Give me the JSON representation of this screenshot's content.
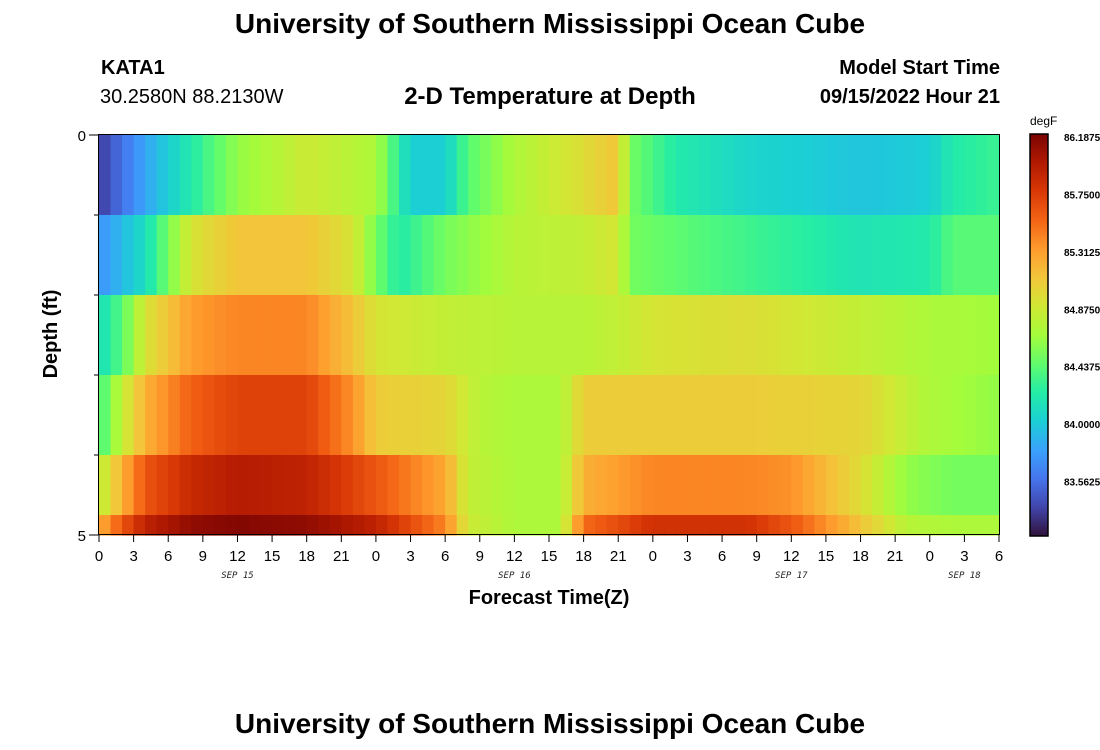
{
  "header": {
    "title": "University of Southern Mississippi Ocean Cube",
    "station": "KATA1",
    "coords": "30.2580N  88.2130W",
    "subtitle": "2-D Temperature at Depth",
    "model_label": "Model Start Time",
    "model_time": "09/15/2022 Hour 21"
  },
  "footer": {
    "title": "University of Southern Mississippi Ocean Cube"
  },
  "chart_data": {
    "type": "heatmap",
    "title": "2-D Temperature at Depth",
    "xlabel": "Forecast Time(Z)",
    "ylabel": "Depth (ft)",
    "x_tick_labels": [
      "0",
      "3",
      "6",
      "9",
      "12",
      "15",
      "18",
      "21",
      "0",
      "3",
      "6",
      "9",
      "12",
      "15",
      "18",
      "21",
      "0",
      "3",
      "6",
      "9",
      "12",
      "15",
      "18",
      "21",
      "0",
      "3",
      "6"
    ],
    "date_labels": [
      {
        "label": "SEP 15",
        "hour": 12
      },
      {
        "label": "SEP 16",
        "hour": 36
      },
      {
        "label": "SEP 17",
        "hour": 60
      },
      {
        "label": "SEP 18",
        "hour": 75
      }
    ],
    "x_range_hours": [
      0,
      78
    ],
    "y_tick_labels": [
      "0",
      "5"
    ],
    "y_range": [
      0,
      5
    ],
    "colorbar": {
      "unit": "degF",
      "tick_labels": [
        "86.1875",
        "85.7500",
        "85.3125",
        "84.8750",
        "84.4375",
        "84.0000",
        "83.5625"
      ],
      "min": 83.125,
      "max": 86.1875,
      "colors": [
        "#30123b",
        "#4145ab",
        "#4675ed",
        "#39a2fc",
        "#1bcfd4",
        "#24eca6",
        "#61fc6c",
        "#a4fc3b",
        "#d1e834",
        "#f3c63a",
        "#fe9b2d",
        "#f36315",
        "#d93806",
        "#b11901",
        "#7a0402"
      ]
    },
    "depth_rows": [
      {
        "depth": 0.5,
        "keys": [
          [
            0,
            83.3
          ],
          [
            4,
            83.8
          ],
          [
            8,
            84.2
          ],
          [
            12,
            84.6
          ],
          [
            18,
            84.85
          ],
          [
            24,
            84.7
          ],
          [
            27,
            84.0
          ],
          [
            30,
            84.0
          ],
          [
            32,
            84.4
          ],
          [
            36,
            84.7
          ],
          [
            42,
            84.95
          ],
          [
            45,
            85.1
          ],
          [
            46,
            84.5
          ],
          [
            50,
            84.2
          ],
          [
            56,
            84.05
          ],
          [
            66,
            83.95
          ],
          [
            72,
            84.0
          ],
          [
            74,
            84.2
          ],
          [
            78,
            84.3
          ]
        ]
      },
      {
        "depth": 1.5,
        "keys": [
          [
            0,
            83.7
          ],
          [
            4,
            84.1
          ],
          [
            8,
            84.9
          ],
          [
            12,
            85.1
          ],
          [
            18,
            85.1
          ],
          [
            22,
            84.9
          ],
          [
            24,
            84.5
          ],
          [
            26,
            84.2
          ],
          [
            30,
            84.5
          ],
          [
            36,
            84.75
          ],
          [
            42,
            84.8
          ],
          [
            45,
            84.9
          ],
          [
            46,
            84.5
          ],
          [
            54,
            84.35
          ],
          [
            66,
            84.15
          ],
          [
            72,
            84.2
          ],
          [
            74,
            84.4
          ],
          [
            78,
            84.4
          ]
        ]
      },
      {
        "depth": 2.5,
        "keys": [
          [
            0,
            84.1
          ],
          [
            2,
            84.4
          ],
          [
            4,
            84.9
          ],
          [
            8,
            85.3
          ],
          [
            12,
            85.4
          ],
          [
            18,
            85.4
          ],
          [
            22,
            85.1
          ],
          [
            24,
            84.9
          ],
          [
            30,
            84.8
          ],
          [
            36,
            84.75
          ],
          [
            42,
            84.75
          ],
          [
            45,
            84.8
          ],
          [
            48,
            84.9
          ],
          [
            56,
            84.95
          ],
          [
            66,
            84.8
          ],
          [
            72,
            84.7
          ],
          [
            78,
            84.65
          ]
        ]
      },
      {
        "depth": 3.5,
        "keys": [
          [
            0,
            84.3
          ],
          [
            2,
            84.8
          ],
          [
            4,
            85.2
          ],
          [
            8,
            85.55
          ],
          [
            12,
            85.7
          ],
          [
            18,
            85.7
          ],
          [
            22,
            85.35
          ],
          [
            24,
            85.05
          ],
          [
            30,
            85.0
          ],
          [
            33,
            84.75
          ],
          [
            36,
            84.7
          ],
          [
            40,
            84.7
          ],
          [
            42,
            85.05
          ],
          [
            48,
            85.05
          ],
          [
            56,
            85.05
          ],
          [
            66,
            85.0
          ],
          [
            72,
            84.7
          ],
          [
            78,
            84.6
          ]
        ]
      },
      {
        "depth": 4.5,
        "keys": [
          [
            0,
            84.75
          ],
          [
            2,
            85.2
          ],
          [
            4,
            85.6
          ],
          [
            8,
            85.85
          ],
          [
            12,
            85.95
          ],
          [
            18,
            85.9
          ],
          [
            24,
            85.6
          ],
          [
            30,
            85.25
          ],
          [
            32,
            84.8
          ],
          [
            36,
            84.7
          ],
          [
            40,
            84.7
          ],
          [
            42,
            85.2
          ],
          [
            48,
            85.4
          ],
          [
            56,
            85.4
          ],
          [
            60,
            85.35
          ],
          [
            66,
            84.95
          ],
          [
            70,
            84.6
          ],
          [
            74,
            84.5
          ],
          [
            78,
            84.5
          ]
        ]
      },
      {
        "depth": 5.0,
        "keys": [
          [
            0,
            85.2
          ],
          [
            2,
            85.6
          ],
          [
            4,
            85.9
          ],
          [
            8,
            86.1
          ],
          [
            12,
            86.15
          ],
          [
            18,
            86.1
          ],
          [
            24,
            85.9
          ],
          [
            30,
            85.4
          ],
          [
            32,
            84.85
          ],
          [
            36,
            84.7
          ],
          [
            40,
            84.7
          ],
          [
            42,
            85.5
          ],
          [
            48,
            85.8
          ],
          [
            56,
            85.8
          ],
          [
            60,
            85.6
          ],
          [
            66,
            85.1
          ],
          [
            70,
            84.75
          ],
          [
            74,
            84.7
          ],
          [
            78,
            84.7
          ]
        ]
      }
    ]
  }
}
